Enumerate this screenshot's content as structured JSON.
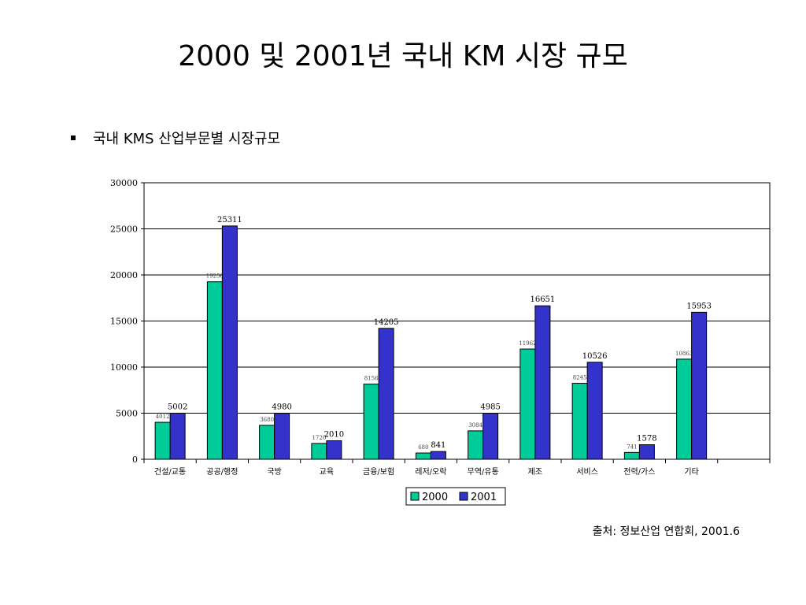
{
  "slide": {
    "title": "2000 및 2001년 국내 KM 시장 규모",
    "bullet": "국내 KMS 산업부문별 시장규모",
    "source": "출처: 정보산업 연합회, 2001.6"
  },
  "chart_data": {
    "type": "bar",
    "categories": [
      "건설/교통",
      "공공/행정",
      "국방",
      "교육",
      "금융/보험",
      "레저/오락",
      "무역/유통",
      "제조",
      "서비스",
      "전력/가스",
      "기타"
    ],
    "series": [
      {
        "name": "2000",
        "color": "#00cc99",
        "values": [
          4012,
          19256,
          3680,
          1720,
          8156,
          680,
          3084,
          11962,
          8245,
          741,
          10863
        ],
        "labels": [
          "4012",
          "19256",
          "3680",
          "1720",
          "8156",
          "680",
          "3084",
          "11962",
          "8245",
          "741",
          "10863"
        ]
      },
      {
        "name": "2001",
        "color": "#3333cc",
        "values": [
          5002,
          25311,
          4980,
          2010,
          14205,
          841,
          4985,
          16651,
          10526,
          1578,
          15953
        ],
        "labels": [
          "5002",
          "25311",
          "4980",
          "2010",
          "14205",
          "841",
          "4985",
          "16651",
          "10526",
          "1578",
          "15953"
        ]
      }
    ],
    "ylim": [
      0,
      30000
    ],
    "yticks": [
      0,
      5000,
      10000,
      15000,
      20000,
      25000,
      30000
    ],
    "grid": true,
    "legend": "bottom"
  }
}
